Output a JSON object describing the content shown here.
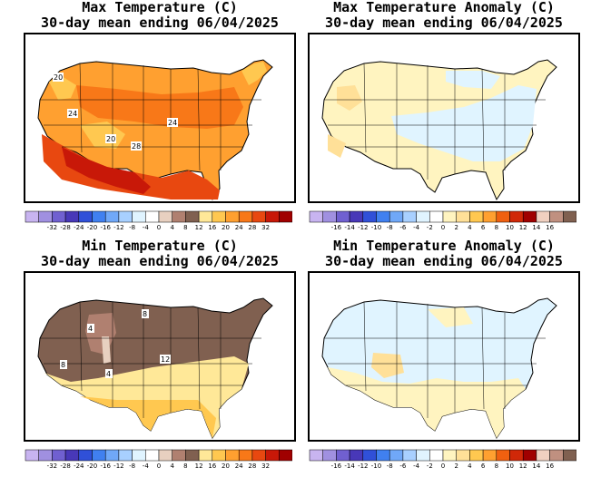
{
  "panels": [
    {
      "id": "max-temp",
      "title_line1": "Max Temperature (C)",
      "title_line2": "30-day mean ending 06/04/2025",
      "colorbar_labels": [
        "-32",
        "-28",
        "-24",
        "-20",
        "-16",
        "-12",
        "-8",
        "-4",
        "0",
        "4",
        "8",
        "12",
        "16",
        "20",
        "24",
        "28",
        "32"
      ],
      "contour_labels": [
        "20",
        "24",
        "20",
        "24",
        "28"
      ],
      "palette": [
        "#c8b4f0",
        "#a090e0",
        "#7060d0",
        "#4838b8",
        "#3050d8",
        "#4080f0",
        "#70a8f8",
        "#a8d0ff",
        "#e0f4ff",
        "#ffffff",
        "#e8d0c0",
        "#b08070",
        "#806050",
        "#ffe898",
        "#ffc850",
        "#ffa030",
        "#f87818",
        "#e84810",
        "#c81808",
        "#a00000"
      ]
    },
    {
      "id": "max-temp-anomaly",
      "title_line1": "Max Temperature Anomaly (C)",
      "title_line2": "30-day mean ending 06/04/2025",
      "colorbar_labels": [
        "-16",
        "-14",
        "-12",
        "-10",
        "-8",
        "-6",
        "-4",
        "-2",
        "0",
        "2",
        "4",
        "6",
        "8",
        "10",
        "12",
        "14",
        "16"
      ],
      "contour_labels": [],
      "palette": [
        "#c8b4f0",
        "#a090e0",
        "#7060d0",
        "#4838b8",
        "#3050d8",
        "#4080f0",
        "#70a8f8",
        "#a8d0ff",
        "#e0f4ff",
        "#ffffff",
        "#fff4c0",
        "#ffe098",
        "#ffc850",
        "#ffa030",
        "#f06010",
        "#d02808",
        "#a00000",
        "#f0d0c0",
        "#c09080",
        "#806050"
      ]
    },
    {
      "id": "min-temp",
      "title_line1": "Min Temperature (C)",
      "title_line2": "30-day mean ending 06/04/2025",
      "colorbar_labels": [
        "-32",
        "-28",
        "-24",
        "-20",
        "-16",
        "-12",
        "-8",
        "-4",
        "0",
        "4",
        "8",
        "12",
        "16",
        "20",
        "24",
        "28",
        "32"
      ],
      "contour_labels": [
        "8",
        "4",
        "12",
        "8",
        "4"
      ],
      "palette": [
        "#c8b4f0",
        "#a090e0",
        "#7060d0",
        "#4838b8",
        "#3050d8",
        "#4080f0",
        "#70a8f8",
        "#a8d0ff",
        "#e0f4ff",
        "#ffffff",
        "#e8d0c0",
        "#b08070",
        "#806050",
        "#ffe898",
        "#ffc850",
        "#ffa030",
        "#f87818",
        "#e84810",
        "#c81808",
        "#a00000"
      ]
    },
    {
      "id": "min-temp-anomaly",
      "title_line1": "Min Temperature Anomaly (C)",
      "title_line2": "30-day mean ending 06/04/2025",
      "colorbar_labels": [
        "-16",
        "-14",
        "-12",
        "-10",
        "-8",
        "-6",
        "-4",
        "-2",
        "0",
        "2",
        "4",
        "6",
        "8",
        "10",
        "12",
        "14",
        "16"
      ],
      "contour_labels": [],
      "palette": [
        "#c8b4f0",
        "#a090e0",
        "#7060d0",
        "#4838b8",
        "#3050d8",
        "#4080f0",
        "#70a8f8",
        "#a8d0ff",
        "#e0f4ff",
        "#ffffff",
        "#fff4c0",
        "#ffe098",
        "#ffc850",
        "#ffa030",
        "#f06010",
        "#d02808",
        "#a00000",
        "#f0d0c0",
        "#c09080",
        "#806050"
      ]
    }
  ]
}
